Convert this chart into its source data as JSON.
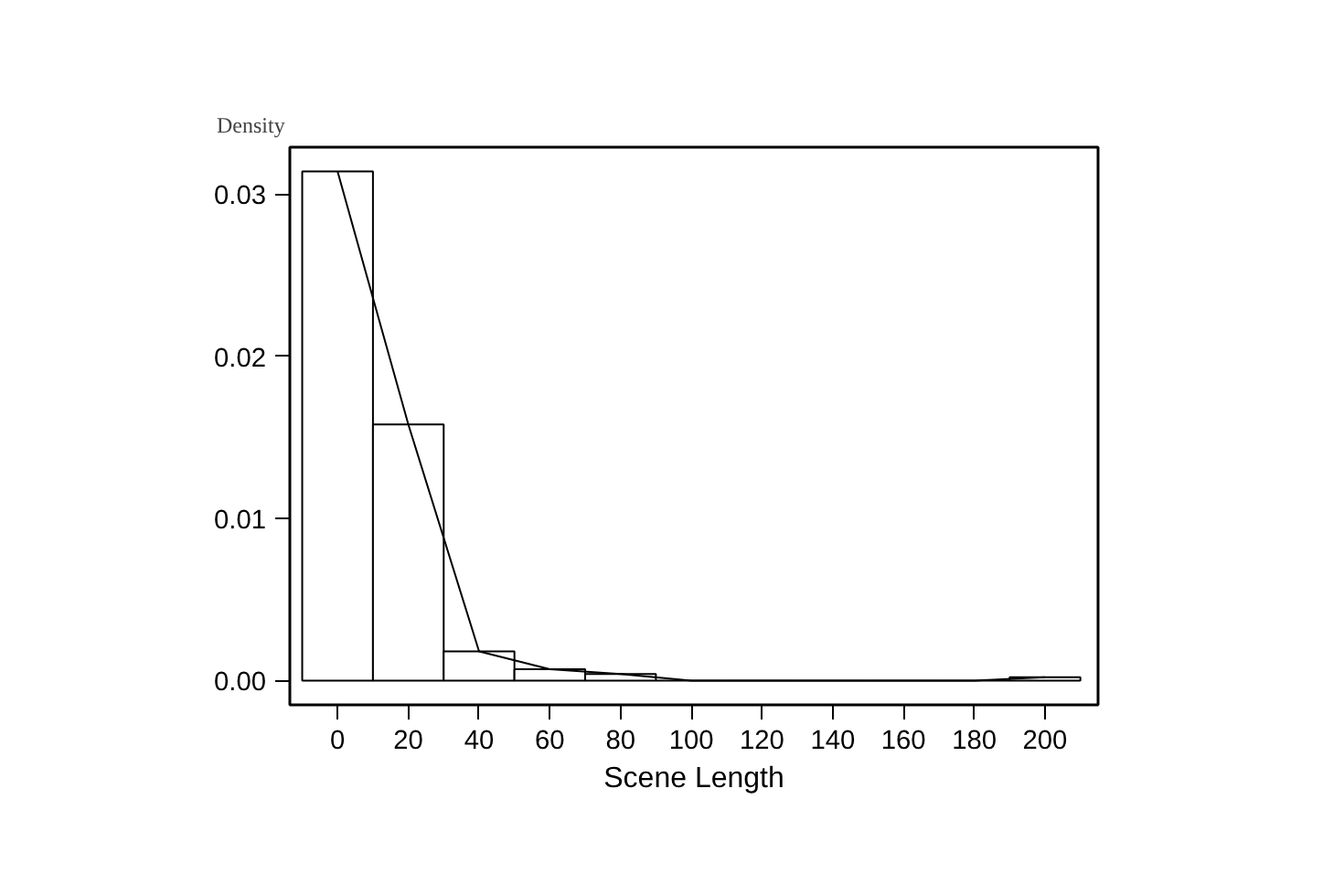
{
  "chart_data": {
    "type": "histogram",
    "xlabel": "Scene Length",
    "ylabel": "Density",
    "bins": [
      -10,
      10,
      30,
      50,
      70,
      90,
      110,
      130,
      150,
      170,
      190,
      210
    ],
    "values": [
      0.0314,
      0.0158,
      0.0018,
      0.0007,
      0.0004,
      0,
      0,
      0,
      0,
      0,
      0.0002
    ],
    "color": "#ffffff",
    "series": [
      {
        "type": "line",
        "color": "#000000",
        "x": [
          0,
          20,
          40,
          60,
          80,
          100,
          120,
          140,
          160,
          180,
          200
        ],
        "values": [
          0.0314,
          0.0158,
          0.0018,
          0.0007,
          0.0004,
          0,
          0,
          0,
          0,
          0,
          0.0002
        ]
      }
    ],
    "xlim": [
      -13.5,
      215
    ],
    "ylim": [
      -0.0015,
      0.0329
    ],
    "xticks": [
      0,
      20,
      40,
      60,
      80,
      100,
      120,
      140,
      160,
      180,
      200
    ],
    "yticks": [
      {
        "value": 0,
        "label": "0.00"
      },
      {
        "value": 0.01,
        "label": "0.01"
      },
      {
        "value": 0.02,
        "label": "0.02"
      },
      {
        "value": 0.03,
        "label": "0.03"
      }
    ],
    "grid": false
  }
}
